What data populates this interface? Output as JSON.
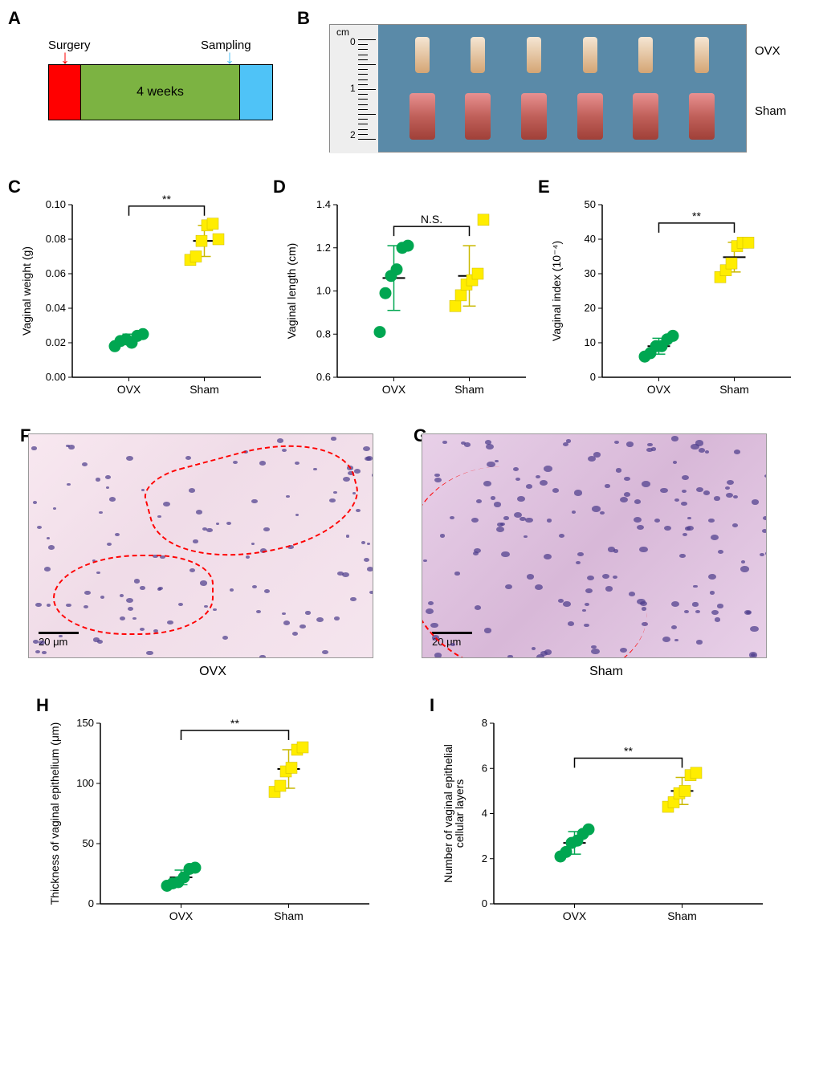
{
  "labels": {
    "A": "A",
    "B": "B",
    "C": "C",
    "D": "D",
    "E": "E",
    "F": "F",
    "G": "G",
    "H": "H",
    "I": "I"
  },
  "panelA": {
    "surgery": "Surgery",
    "sampling": "Sampling",
    "duration": "4 weeks",
    "color_red": "#ff0000",
    "color_green": "#7cb342",
    "color_blue": "#4fc3f7"
  },
  "panelB": {
    "ruler_unit": "cm",
    "ruler_ticks": [
      "0",
      "1",
      "2"
    ],
    "row1_label": "OVX",
    "row2_label": "Sham",
    "background": "#5a8aa8",
    "n_specimens": 6
  },
  "scatter_common": {
    "groups": [
      "OVX",
      "Sham"
    ],
    "ovx_color": "#00a651",
    "sham_color": "#ffed00",
    "marker_size": 7,
    "font_family": "Arial"
  },
  "panelC": {
    "ylabel": "Vaginal weight (g)",
    "ylim": [
      0.0,
      0.1
    ],
    "yticks": [
      0.0,
      0.02,
      0.04,
      0.06,
      0.08,
      0.1
    ],
    "ytick_labels": [
      "0.00",
      "0.02",
      "0.04",
      "0.06",
      "0.08",
      "0.10"
    ],
    "ovx": [
      0.018,
      0.021,
      0.022,
      0.02,
      0.024,
      0.025
    ],
    "sham": [
      0.068,
      0.07,
      0.079,
      0.088,
      0.089,
      0.08
    ],
    "ovx_mean": 0.022,
    "ovx_sd": 0.003,
    "sham_mean": 0.079,
    "sham_sd": 0.009,
    "sig": "**"
  },
  "panelD": {
    "ylabel": "Vaginal length (cm)",
    "ylim": [
      0.6,
      1.4
    ],
    "yticks": [
      0.6,
      0.8,
      1.0,
      1.2,
      1.4
    ],
    "ytick_labels": [
      "0.6",
      "0.8",
      "1.0",
      "1.2",
      "1.4"
    ],
    "ovx": [
      0.81,
      0.99,
      1.07,
      1.1,
      1.2,
      1.21
    ],
    "sham": [
      0.93,
      0.98,
      1.03,
      1.05,
      1.08,
      1.33
    ],
    "ovx_mean": 1.06,
    "ovx_sd": 0.15,
    "sham_mean": 1.07,
    "sham_sd": 0.14,
    "sig": "N.S."
  },
  "panelE": {
    "ylabel": "Vaginal index (10⁻⁴)",
    "ylim": [
      0,
      50
    ],
    "yticks": [
      0,
      10,
      20,
      30,
      40,
      50
    ],
    "ytick_labels": [
      "0",
      "10",
      "20",
      "30",
      "40",
      "50"
    ],
    "ovx": [
      6,
      7,
      9,
      9,
      11,
      12
    ],
    "sham": [
      29,
      31,
      33,
      38,
      39,
      39
    ],
    "ovx_mean": 9.0,
    "ovx_sd": 2.3,
    "sham_mean": 34.8,
    "sham_sd": 4.3,
    "sig": "**"
  },
  "panelF": {
    "caption": "OVX",
    "scalebar": "20 μm"
  },
  "panelG": {
    "caption": "Sham",
    "scalebar": "20 μm"
  },
  "panelH": {
    "ylabel": "Thickness of vaginal epithelium (μm)",
    "ylim": [
      0,
      150
    ],
    "yticks": [
      0,
      50,
      100,
      150
    ],
    "ytick_labels": [
      "0",
      "50",
      "100",
      "150"
    ],
    "ovx": [
      15,
      17,
      18,
      22,
      29,
      30
    ],
    "sham": [
      93,
      98,
      110,
      113,
      128,
      130
    ],
    "ovx_mean": 22,
    "ovx_sd": 6,
    "sham_mean": 112,
    "sham_sd": 16,
    "sig": "**"
  },
  "panelI": {
    "ylabel": "Number of vaginal epithelial\ncellular layers",
    "ylim": [
      0,
      8
    ],
    "yticks": [
      0,
      2,
      4,
      6,
      8
    ],
    "ytick_labels": [
      "0",
      "2",
      "4",
      "6",
      "8"
    ],
    "ovx": [
      2.1,
      2.3,
      2.7,
      2.8,
      3.1,
      3.3
    ],
    "sham": [
      4.3,
      4.5,
      4.9,
      5.0,
      5.7,
      5.8
    ],
    "ovx_mean": 2.7,
    "ovx_sd": 0.5,
    "sham_mean": 5.0,
    "sham_sd": 0.6,
    "sig": "**"
  }
}
